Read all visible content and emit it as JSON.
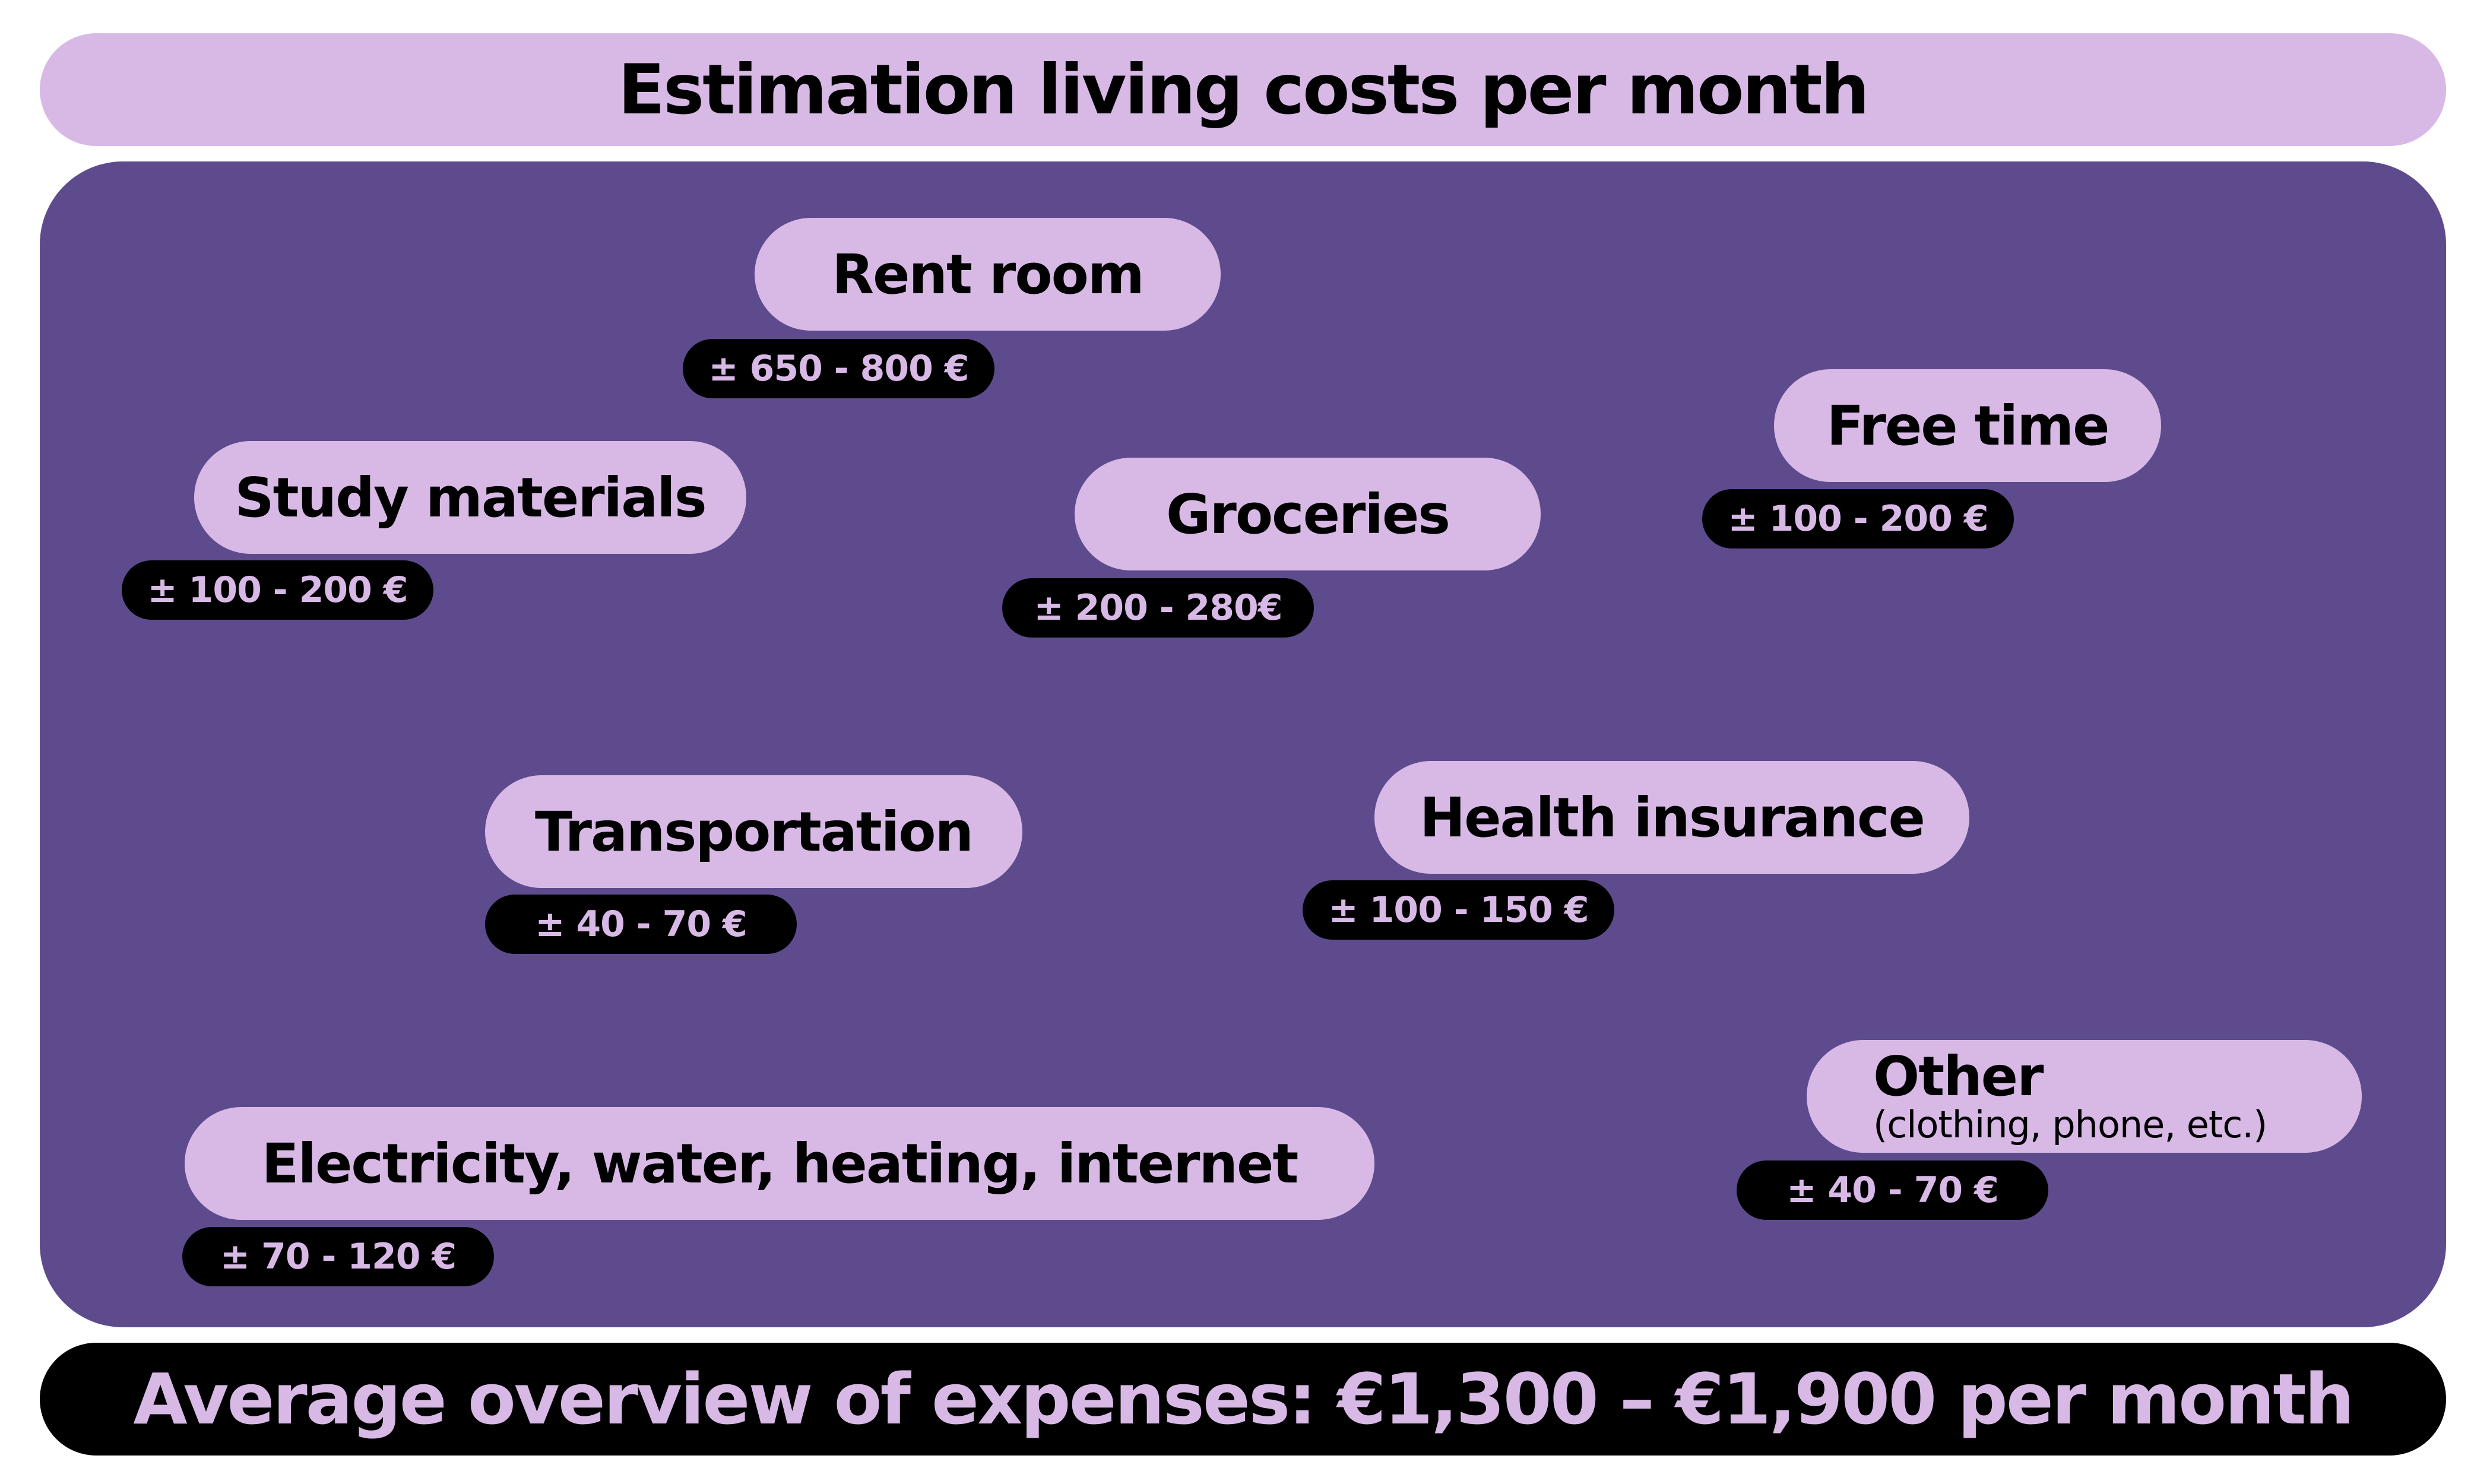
{
  "title": "Estimation living costs per month",
  "items": {
    "rent": {
      "label": "Rent room",
      "price": "± 650 - 800 €"
    },
    "free_time": {
      "label": "Free time",
      "price": "± 100 - 200 €"
    },
    "study": {
      "label": "Study materials",
      "price": "± 100 - 200 €"
    },
    "groceries": {
      "label": "Groceries",
      "price": "± 200 - 280€"
    },
    "transport": {
      "label": "Transportation",
      "price": "± 40 - 70 €"
    },
    "health": {
      "label": "Health insurance",
      "price": "± 100 - 150 €"
    },
    "utilities": {
      "label": "Electricity, water, heating, internet",
      "price": "± 70 - 120 €"
    },
    "other": {
      "label": "Other",
      "note": "(clothing, phone, etc.)",
      "price": "± 40 - 70 €"
    }
  },
  "footer": "Average overview of expenses: €1,300 – €1,900 per month",
  "colors": {
    "pill": "#d8b9e6",
    "panel": "#5e4b8e",
    "price_bg": "#000000"
  }
}
